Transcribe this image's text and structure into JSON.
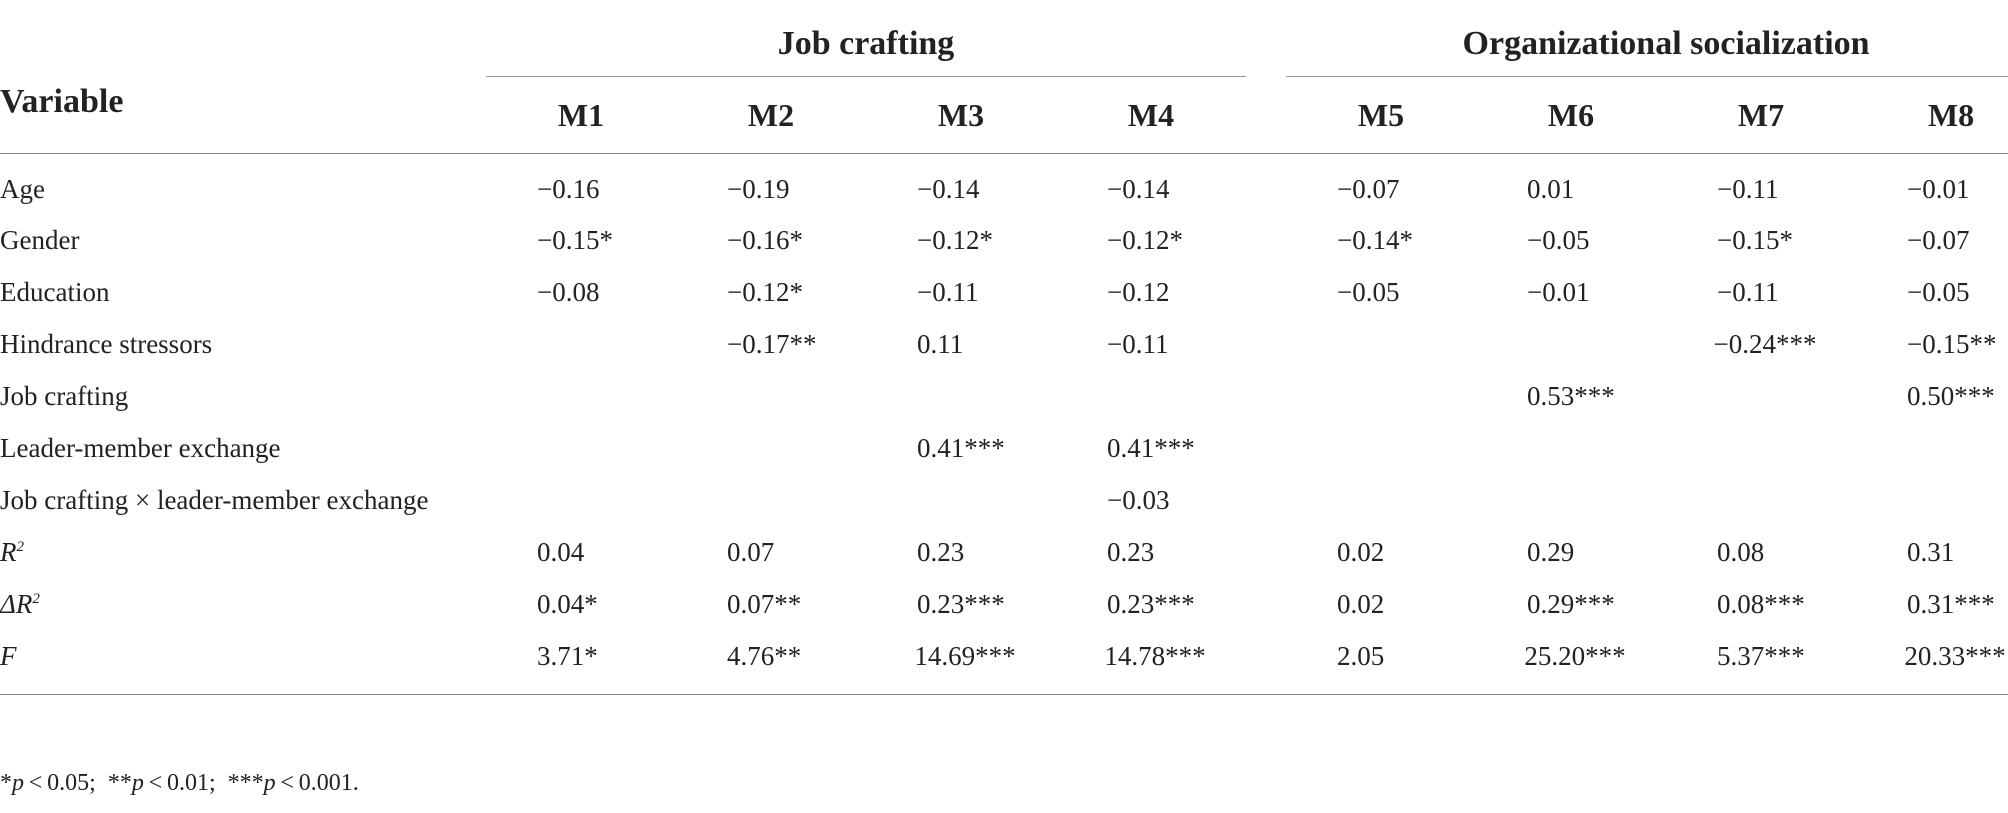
{
  "header": {
    "variable": "Variable",
    "groups": [
      "Job crafting",
      "Organizational socialization"
    ],
    "models": [
      "M1",
      "M2",
      "M3",
      "M4",
      "M5",
      "M6",
      "M7",
      "M8"
    ]
  },
  "rows": [
    {
      "label": "Age",
      "values": [
        "−0.16",
        "−0.19",
        "−0.14",
        "−0.14",
        "−0.07",
        "0.01",
        "−0.11",
        "−0.01"
      ]
    },
    {
      "label": "Gender",
      "values": [
        "−0.15*",
        "−0.16*",
        "−0.12*",
        "−0.12*",
        "−0.14*",
        "−0.05",
        "−0.15*",
        "−0.07"
      ]
    },
    {
      "label": "Education",
      "values": [
        "−0.08",
        "−0.12*",
        "−0.11",
        "−0.12",
        "−0.05",
        "−0.01",
        "−0.11",
        "−0.05"
      ]
    },
    {
      "label": "Hindrance stressors",
      "values": [
        "",
        "−0.17**",
        "0.11",
        "−0.11",
        "",
        "",
        "−0.24***",
        "−0.15**"
      ]
    },
    {
      "label": "Job crafting",
      "values": [
        "",
        "",
        "",
        "",
        "",
        "0.53***",
        "",
        "0.50***"
      ]
    },
    {
      "label": "Leader-member exchange",
      "values": [
        "",
        "",
        "0.41***",
        "0.41***",
        "",
        "",
        "",
        ""
      ]
    },
    {
      "label": "Job crafting × leader-member exchange",
      "values": [
        "",
        "",
        "",
        "−0.03",
        "",
        "",
        "",
        ""
      ]
    },
    {
      "label": "R",
      "label_sup": "2",
      "label_prefix": "",
      "values": [
        "0.04",
        "0.07",
        "0.23",
        "0.23",
        "0.02",
        "0.29",
        "0.08",
        "0.31"
      ]
    },
    {
      "label": "R",
      "label_sup": "2",
      "label_prefix": "Δ",
      "values": [
        "0.04*",
        "0.07**",
        "0.23***",
        "0.23***",
        "0.02",
        "0.29***",
        "0.08***",
        "0.31***"
      ]
    },
    {
      "label": "F",
      "values": [
        "3.71*",
        "4.76**",
        "14.69***",
        "14.78***",
        "2.05",
        "25.20***",
        "5.37***",
        "20.33***"
      ]
    }
  ],
  "footnote": {
    "parts": [
      {
        "stars": "*",
        "p": "p",
        "rest": " < 0.05;"
      },
      {
        "stars": "**",
        "p": "p",
        "rest": " < 0.01;"
      },
      {
        "stars": "***",
        "p": "p",
        "rest": " < 0.001."
      }
    ]
  }
}
